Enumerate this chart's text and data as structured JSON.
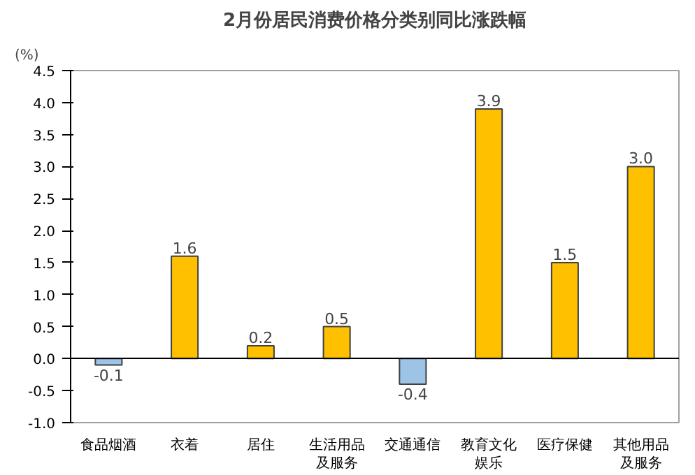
{
  "chart_data": {
    "type": "bar",
    "title": "2月份居民消费价格分类别同比涨跌幅",
    "ylabel": "(%)",
    "categories": [
      "食品烟酒",
      "衣着",
      "居住",
      "生活用品及服务",
      "交通通信",
      "教育文化娱乐",
      "医疗保健",
      "其他用品及服务"
    ],
    "values": [
      -0.1,
      1.6,
      0.2,
      0.5,
      -0.4,
      3.9,
      1.5,
      3.0
    ],
    "value_labels": [
      "-0.1",
      "1.6",
      "0.2",
      "0.5",
      "-0.4",
      "3.9",
      "1.5",
      "3.0"
    ],
    "colors": [
      "#9dc3e6",
      "#ffc000",
      "#ffc000",
      "#ffc000",
      "#9dc3e6",
      "#ffc000",
      "#ffc000",
      "#ffc000"
    ],
    "ylim": [
      -1.0,
      4.5
    ],
    "data_labels": true,
    "yticks": [
      {
        "value": -1.0,
        "label": "-1.0"
      },
      {
        "value": -0.5,
        "label": "-0.5"
      },
      {
        "value": 0.0,
        "label": "0.0"
      },
      {
        "value": 0.5,
        "label": "0.5"
      },
      {
        "value": 1.0,
        "label": "1.0"
      },
      {
        "value": 1.5,
        "label": "1.5"
      },
      {
        "value": 2.0,
        "label": "2.0"
      },
      {
        "value": 2.5,
        "label": "2.5"
      },
      {
        "value": 3.0,
        "label": "3.0"
      },
      {
        "value": 3.5,
        "label": "3.5"
      },
      {
        "value": 4.0,
        "label": "4.0"
      },
      {
        "value": 4.5,
        "label": "4.5"
      }
    ]
  }
}
